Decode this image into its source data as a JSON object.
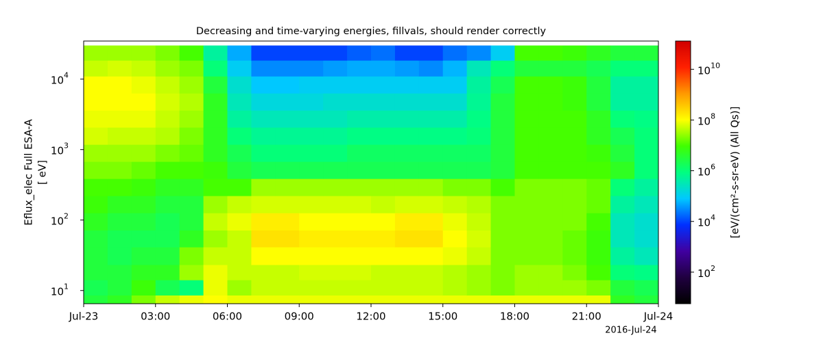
{
  "chart_data": {
    "type": "spectrogram",
    "title": "Decreasing and time-varying energies, fillvals, should render correctly",
    "ylabel": [
      "Eflux_elec Full ESA-A",
      "[ eV]"
    ],
    "zlabel": "[eV/(cm²-s-sr-eV) (All Qs)]",
    "x_offset_label": "2016-Jul-24",
    "xlim": [
      0,
      24
    ],
    "xticks": [
      {
        "value": 0,
        "label": "Jul-23"
      },
      {
        "value": 3,
        "label": "03:00"
      },
      {
        "value": 6,
        "label": "06:00"
      },
      {
        "value": 9,
        "label": "09:00"
      },
      {
        "value": 12,
        "label": "12:00"
      },
      {
        "value": 15,
        "label": "15:00"
      },
      {
        "value": 18,
        "label": "18:00"
      },
      {
        "value": 21,
        "label": "21:00"
      },
      {
        "value": 24,
        "label": "Jul-24"
      }
    ],
    "ylim": [
      6.5,
      34700
    ],
    "ylog": true,
    "yticks": [
      {
        "value": 10,
        "label": "10",
        "exponent": "1"
      },
      {
        "value": 100,
        "label": "10",
        "exponent": "2"
      },
      {
        "value": 1000,
        "label": "10",
        "exponent": "3"
      },
      {
        "value": 10000,
        "label": "10",
        "exponent": "4"
      }
    ],
    "zlim": [
      5.7,
      130000000000
    ],
    "zlog": true,
    "zticks": [
      {
        "value": 100,
        "label": "10",
        "exponent": "2"
      },
      {
        "value": 10000,
        "label": "10",
        "exponent": "4"
      },
      {
        "value": 1000000,
        "label": "10",
        "exponent": "6"
      },
      {
        "value": 100000000,
        "label": "10",
        "exponent": "8"
      },
      {
        "value": 10000000000,
        "label": "10",
        "exponent": "10"
      }
    ],
    "colormap": [
      "#000000",
      "#200040",
      "#4000a0",
      "#0030ff",
      "#00c8ff",
      "#00ff80",
      "#40ff00",
      "#ffff00",
      "#ff9900",
      "#ff2000",
      "#d00000"
    ],
    "x_edges": [
      0,
      1,
      2,
      3,
      4,
      5,
      6,
      7,
      8,
      9,
      10,
      11,
      12,
      13,
      14,
      15,
      16,
      17,
      18,
      19,
      20,
      21,
      22,
      23,
      24
    ],
    "y_edges": [
      30000,
      18300,
      10900,
      6250,
      3570,
      2050,
      1170,
      670,
      383,
      219,
      125,
      71,
      41,
      23,
      14,
      8.5,
      6.5
    ],
    "values": [
      [
        30000000.0,
        50000000.0,
        100000000.0,
        100000000.0,
        80000000.0,
        60000000.0,
        30000000.0,
        20000000.0,
        10000000.0,
        8000000.0,
        5000000.0,
        3000000.0,
        3000000.0,
        3000000.0,
        2000000.0,
        3000000.0
      ],
      [
        30000000.0,
        60000000.0,
        100000000.0,
        100000000.0,
        80000000.0,
        50000000.0,
        30000000.0,
        20000000.0,
        10000000.0,
        5000000.0,
        3000000.0,
        2000000.0,
        2000000.0,
        3000000.0,
        3000000.0,
        5000000.0
      ],
      [
        30000000.0,
        50000000.0,
        80000000.0,
        100000000.0,
        80000000.0,
        50000000.0,
        30000000.0,
        15000000.0,
        8000000.0,
        5000000.0,
        3000000.0,
        2000000.0,
        3000000.0,
        5000000.0,
        8000000.0,
        20000000.0
      ],
      [
        20000000.0,
        30000000.0,
        50000000.0,
        60000000.0,
        50000000.0,
        40000000.0,
        20000000.0,
        10000000.0,
        5000000.0,
        3000000.0,
        2000000.0,
        2000000.0,
        3000000.0,
        5000000.0,
        2000000.0,
        50000000.0
      ],
      [
        10000000.0,
        20000000.0,
        30000000.0,
        40000000.0,
        30000000.0,
        20000000.0,
        15000000.0,
        10000000.0,
        5000000.0,
        3000000.0,
        3000000.0,
        5000000.0,
        20000000.0,
        30000000.0,
        1000000.0,
        80000000.0
      ],
      [
        500000.0,
        1000000.0,
        3000000.0,
        5000000.0,
        5000000.0,
        5000000.0,
        5000000.0,
        8000000.0,
        10000000.0,
        30000000.0,
        50000000.0,
        30000000.0,
        50000000.0,
        80000000.0,
        80000000.0,
        100000000.0
      ],
      [
        50000.0,
        100000.0,
        200000.0,
        300000.0,
        500000.0,
        1000000.0,
        2000000.0,
        3000000.0,
        10000000.0,
        50000000.0,
        80000000.0,
        50000000.0,
        50000000.0,
        50000000.0,
        30000000.0,
        80000000.0
      ],
      [
        10000.0,
        30000.0,
        80000.0,
        150000.0,
        300000.0,
        600000.0,
        1000000.0,
        2000000.0,
        30000000.0,
        60000000.0,
        150000000.0,
        200000000.0,
        100000000.0,
        50000000.0,
        50000000.0,
        80000000.0
      ],
      [
        10000.0,
        30000.0,
        80000.0,
        150000.0,
        300000.0,
        600000.0,
        1000000.0,
        2000000.0,
        30000000.0,
        60000000.0,
        150000000.0,
        200000000.0,
        100000000.0,
        50000000.0,
        50000000.0,
        80000000.0
      ],
      [
        10000.0,
        30000.0,
        100000.0,
        150000.0,
        300000.0,
        600000.0,
        1000000.0,
        2000000.0,
        30000000.0,
        60000000.0,
        100000000.0,
        150000000.0,
        100000000.0,
        60000000.0,
        50000000.0,
        80000000.0
      ],
      [
        10000.0,
        40000.0,
        100000.0,
        200000.0,
        300000.0,
        600000.0,
        1000000.0,
        2000000.0,
        30000000.0,
        60000000.0,
        100000000.0,
        150000000.0,
        100000000.0,
        60000000.0,
        50000000.0,
        80000000.0
      ],
      [
        15000.0,
        50000.0,
        100000.0,
        200000.0,
        400000.0,
        800000.0,
        1500000.0,
        2000000.0,
        30000000.0,
        60000000.0,
        100000000.0,
        150000000.0,
        100000000.0,
        60000000.0,
        50000000.0,
        80000000.0
      ],
      [
        20000.0,
        50000.0,
        100000.0,
        200000.0,
        400000.0,
        800000.0,
        1500000.0,
        2000000.0,
        30000000.0,
        50000000.0,
        100000000.0,
        150000000.0,
        100000000.0,
        50000000.0,
        50000000.0,
        80000000.0
      ],
      [
        10000.0,
        40000.0,
        100000.0,
        200000.0,
        400000.0,
        800000.0,
        1500000.0,
        2000000.0,
        30000000.0,
        60000000.0,
        150000000.0,
        200000000.0,
        100000000.0,
        50000000.0,
        50000000.0,
        80000000.0
      ],
      [
        10000.0,
        30000.0,
        100000.0,
        200000.0,
        400000.0,
        800000.0,
        1500000.0,
        2000000.0,
        30000000.0,
        60000000.0,
        150000000.0,
        200000000.0,
        100000000.0,
        50000000.0,
        50000000.0,
        80000000.0
      ],
      [
        20000.0,
        60000.0,
        100000.0,
        200000.0,
        400000.0,
        800000.0,
        1500000.0,
        2000000.0,
        20000000.0,
        50000000.0,
        80000000.0,
        100000000.0,
        80000000.0,
        40000000.0,
        40000000.0,
        80000000.0
      ],
      [
        30000.0,
        300000.0,
        500000.0,
        600000.0,
        800000.0,
        1000000.0,
        1500000.0,
        2000000.0,
        20000000.0,
        40000000.0,
        50000000.0,
        60000000.0,
        50000000.0,
        30000000.0,
        30000000.0,
        80000000.0
      ],
      [
        100000.0,
        1000000.0,
        2000000.0,
        3000000.0,
        3000000.0,
        3000000.0,
        3000000.0,
        3000000.0,
        10000000.0,
        20000000.0,
        20000000.0,
        20000000.0,
        20000000.0,
        20000000.0,
        20000000.0,
        80000000.0
      ],
      [
        10000000.0,
        3000000.0,
        10000000.0,
        10000000.0,
        10000000.0,
        10000000.0,
        10000000.0,
        10000000.0,
        20000000.0,
        20000000.0,
        20000000.0,
        20000000.0,
        20000000.0,
        30000000.0,
        30000000.0,
        80000000.0
      ],
      [
        10000000.0,
        3000000.0,
        10000000.0,
        10000000.0,
        10000000.0,
        10000000.0,
        10000000.0,
        10000000.0,
        20000000.0,
        20000000.0,
        20000000.0,
        20000000.0,
        20000000.0,
        30000000.0,
        30000000.0,
        80000000.0
      ],
      [
        8000000.0,
        3000000.0,
        8000000.0,
        8000000.0,
        10000000.0,
        10000000.0,
        10000000.0,
        10000000.0,
        20000000.0,
        20000000.0,
        20000000.0,
        15000000.0,
        15000000.0,
        20000000.0,
        30000000.0,
        80000000.0
      ],
      [
        5000000.0,
        2000000.0,
        3000000.0,
        3000000.0,
        5000000.0,
        5000000.0,
        8000000.0,
        10000000.0,
        15000000.0,
        15000000.0,
        10000000.0,
        8000000.0,
        8000000.0,
        10000000.0,
        20000000.0,
        80000000.0
      ],
      [
        3000000.0,
        1000000.0,
        500000.0,
        500000.0,
        1000000.0,
        2000000.0,
        3000000.0,
        5000000.0,
        1000000.0,
        500000.0,
        300000.0,
        300000.0,
        500000.0,
        1000000.0,
        3000000.0,
        5000000.0
      ],
      [
        3000000.0,
        1000000.0,
        500000.0,
        500000.0,
        800000.0,
        1000000.0,
        1000000.0,
        1000000.0,
        500000.0,
        300000.0,
        200000.0,
        200000.0,
        300000.0,
        800000.0,
        2000000.0,
        3000000.0
      ]
    ]
  }
}
